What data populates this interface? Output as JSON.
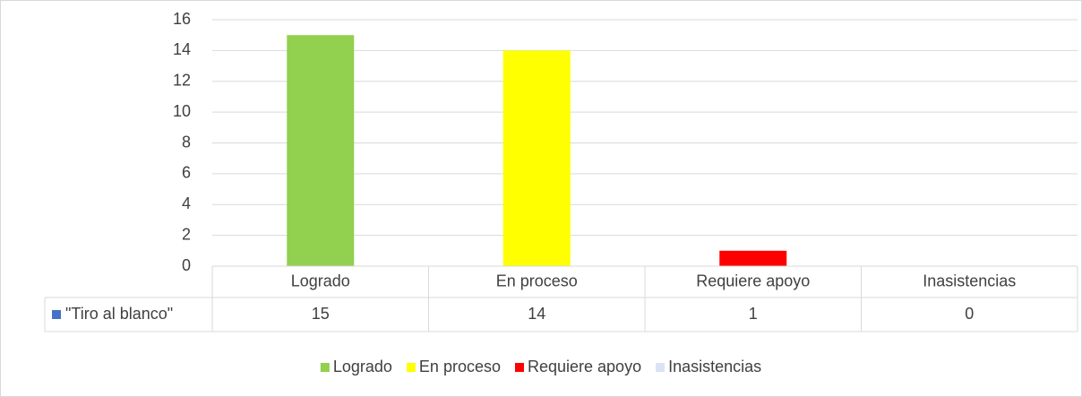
{
  "chart_data": {
    "type": "bar",
    "categories": [
      "Logrado",
      "En proceso",
      "Requiere apoyo",
      "Inasistencias"
    ],
    "series": [
      {
        "name": "\"Tiro al blanco\"",
        "color": "#4472c4",
        "values": [
          15,
          14,
          1,
          0
        ]
      }
    ],
    "point_colors": [
      "#92d050",
      "#ffff00",
      "#ff0000",
      "#dae3f3"
    ],
    "ylim": [
      0,
      16
    ],
    "yticks": [
      0,
      2,
      4,
      6,
      8,
      10,
      12,
      14,
      16
    ],
    "grid": true,
    "legend": "bottom",
    "data_table": true
  }
}
